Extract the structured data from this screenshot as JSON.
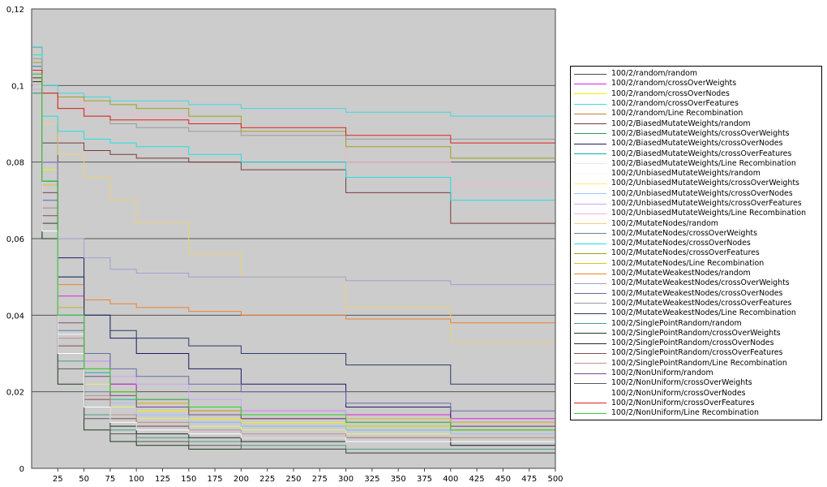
{
  "chart_data": {
    "type": "line",
    "title": "",
    "xlabel": "",
    "ylabel": "",
    "xlim": [
      0,
      500
    ],
    "ylim": [
      0,
      0.12
    ],
    "x_ticks": [
      25,
      50,
      75,
      100,
      125,
      150,
      175,
      200,
      225,
      250,
      275,
      300,
      325,
      350,
      375,
      400,
      425,
      450,
      475,
      500
    ],
    "x_tick_labels": [
      "25",
      "50",
      "75",
      "100",
      "125",
      "150",
      "175",
      "200",
      "225",
      "250",
      "275",
      "300",
      "325",
      "350",
      "375",
      "400",
      "425",
      "450",
      "475",
      "500"
    ],
    "y_ticks": [
      0,
      0.02,
      0.04,
      0.06,
      0.08,
      0.1,
      0.12
    ],
    "y_tick_labels": [
      "0",
      "0,02",
      "0,04",
      "0,06",
      "0,08",
      "0,1",
      "0,12"
    ],
    "grid": "horizontal",
    "legend_position": "right",
    "plot_background": "#cccccc",
    "x": [
      1,
      10,
      25,
      50,
      75,
      100,
      150,
      200,
      300,
      400,
      500
    ],
    "series": [
      {
        "name": "100/2/random/random",
        "color": "#4a4a4a",
        "values": [
          0.11,
          0.085,
          0.05,
          0.03,
          0.022,
          0.018,
          0.015,
          0.013,
          0.011,
          0.01,
          0.01
        ]
      },
      {
        "name": "100/2/random/crossOverWeights",
        "color": "#e020e0",
        "values": [
          0.105,
          0.08,
          0.045,
          0.028,
          0.022,
          0.018,
          0.016,
          0.015,
          0.014,
          0.013,
          0.013
        ]
      },
      {
        "name": "100/2/random/crossOverNodes",
        "color": "#f0f000",
        "values": [
          0.108,
          0.078,
          0.04,
          0.024,
          0.018,
          0.015,
          0.013,
          0.012,
          0.011,
          0.01,
          0.01
        ]
      },
      {
        "name": "100/2/random/crossOverFeatures",
        "color": "#40d8e0",
        "values": [
          0.11,
          0.1,
          0.098,
          0.097,
          0.096,
          0.096,
          0.095,
          0.094,
          0.093,
          0.092,
          0.09
        ]
      },
      {
        "name": "100/2/random/Line Recombination",
        "color": "#c0803a",
        "values": [
          0.1,
          0.072,
          0.04,
          0.026,
          0.02,
          0.017,
          0.014,
          0.013,
          0.012,
          0.011,
          0.011
        ]
      },
      {
        "name": "100/2/BiasedMutateWeights/random",
        "color": "#7a3a3a",
        "values": [
          0.102,
          0.09,
          0.085,
          0.083,
          0.082,
          0.081,
          0.08,
          0.078,
          0.072,
          0.064,
          0.061
        ]
      },
      {
        "name": "100/2/BiasedMutateWeights/crossOverWeights",
        "color": "#2a9a6a",
        "values": [
          0.098,
          0.07,
          0.038,
          0.022,
          0.016,
          0.013,
          0.011,
          0.01,
          0.009,
          0.008,
          0.008
        ]
      },
      {
        "name": "100/2/BiasedMutateWeights/crossOverNodes",
        "color": "#1a1a6a",
        "values": [
          0.1,
          0.08,
          0.055,
          0.04,
          0.034,
          0.03,
          0.026,
          0.022,
          0.016,
          0.012,
          0.01
        ]
      },
      {
        "name": "100/2/BiasedMutateWeights/crossOverFeatures",
        "color": "#10b0b0",
        "values": [
          0.105,
          0.075,
          0.042,
          0.025,
          0.018,
          0.014,
          0.012,
          0.011,
          0.01,
          0.009,
          0.009
        ]
      },
      {
        "name": "100/2/BiasedMutateWeights/Line Recombination",
        "color": "#e8e8f0",
        "values": [
          0.104,
          0.07,
          0.038,
          0.022,
          0.016,
          0.013,
          0.011,
          0.01,
          0.009,
          0.009,
          0.009
        ]
      },
      {
        "name": "100/2/UnbiasedMutateWeights/random",
        "color": "#f8f8f8",
        "values": [
          0.1,
          0.068,
          0.035,
          0.02,
          0.014,
          0.011,
          0.009,
          0.008,
          0.007,
          0.007,
          0.007
        ]
      },
      {
        "name": "100/2/UnbiasedMutateWeights/crossOverWeights",
        "color": "#f0f080",
        "values": [
          0.101,
          0.072,
          0.038,
          0.022,
          0.016,
          0.013,
          0.011,
          0.01,
          0.009,
          0.008,
          0.008
        ]
      },
      {
        "name": "100/2/UnbiasedMutateWeights/crossOverNodes",
        "color": "#a0c0ff",
        "values": [
          0.103,
          0.074,
          0.04,
          0.024,
          0.017,
          0.014,
          0.012,
          0.011,
          0.01,
          0.009,
          0.009
        ]
      },
      {
        "name": "100/2/UnbiasedMutateWeights/crossOverFeatures",
        "color": "#d0a0ff",
        "values": [
          0.099,
          0.07,
          0.036,
          0.028,
          0.024,
          0.022,
          0.018,
          0.015,
          0.013,
          0.012,
          0.012
        ]
      },
      {
        "name": "100/2/UnbiasedMutateWeights/Line Recombination",
        "color": "#ffb0d0",
        "values": [
          0.106,
          0.098,
          0.096,
          0.094,
          0.093,
          0.092,
          0.09,
          0.087,
          0.08,
          0.074,
          0.07
        ]
      },
      {
        "name": "100/2/MutateNodes/random",
        "color": "#f0d070",
        "values": [
          0.104,
          0.09,
          0.082,
          0.076,
          0.07,
          0.064,
          0.056,
          0.05,
          0.042,
          0.033,
          0.03
        ]
      },
      {
        "name": "100/2/MutateNodes/crossOverWeights",
        "color": "#5a8a9a",
        "values": [
          0.1,
          0.068,
          0.036,
          0.02,
          0.014,
          0.011,
          0.009,
          0.008,
          0.007,
          0.006,
          0.006
        ]
      },
      {
        "name": "100/2/MutateNodes/crossOverNodes",
        "color": "#20e0e0",
        "values": [
          0.108,
          0.092,
          0.088,
          0.086,
          0.085,
          0.084,
          0.082,
          0.08,
          0.076,
          0.07,
          0.067
        ]
      },
      {
        "name": "100/2/MutateNodes/crossOverFeatures",
        "color": "#a0a020",
        "values": [
          0.106,
          0.098,
          0.097,
          0.096,
          0.095,
          0.094,
          0.092,
          0.088,
          0.084,
          0.081,
          0.079
        ]
      },
      {
        "name": "100/2/MutateNodes/Line Recombination",
        "color": "#e0c020",
        "values": [
          0.102,
          0.074,
          0.042,
          0.026,
          0.02,
          0.017,
          0.015,
          0.014,
          0.013,
          0.012,
          0.012
        ]
      },
      {
        "name": "100/2/MutateWeakestNodes/random",
        "color": "#f08030",
        "values": [
          0.1,
          0.072,
          0.048,
          0.044,
          0.043,
          0.042,
          0.041,
          0.04,
          0.039,
          0.038,
          0.038
        ]
      },
      {
        "name": "100/2/MutateWeakestNodes/crossOverWeights",
        "color": "#a0a0d0",
        "values": [
          0.104,
          0.08,
          0.06,
          0.055,
          0.052,
          0.051,
          0.05,
          0.05,
          0.049,
          0.048,
          0.048
        ]
      },
      {
        "name": "100/2/MutateWeakestNodes/crossOverNodes",
        "color": "#6a6aaa",
        "values": [
          0.1,
          0.07,
          0.04,
          0.03,
          0.026,
          0.024,
          0.022,
          0.02,
          0.017,
          0.015,
          0.015
        ]
      },
      {
        "name": "100/2/MutateWeakestNodes/crossOverFeatures",
        "color": "#9a9a9a",
        "values": [
          0.107,
          0.098,
          0.094,
          0.092,
          0.09,
          0.089,
          0.088,
          0.087,
          0.086,
          0.086,
          0.085
        ]
      },
      {
        "name": "100/2/MutateWeakestNodes/Line Recombination",
        "color": "#2a3a6a",
        "values": [
          0.1,
          0.075,
          0.05,
          0.04,
          0.036,
          0.034,
          0.032,
          0.03,
          0.027,
          0.022,
          0.02
        ]
      },
      {
        "name": "100/2/SinglePointRandom/random",
        "color": "#4aa080",
        "values": [
          0.098,
          0.06,
          0.028,
          0.014,
          0.01,
          0.008,
          0.007,
          0.006,
          0.005,
          0.005,
          0.005
        ]
      },
      {
        "name": "100/2/SinglePointRandom/crossOverWeights",
        "color": "#1a3a1a",
        "values": [
          0.1,
          0.06,
          0.022,
          0.01,
          0.007,
          0.006,
          0.005,
          0.005,
          0.004,
          0.004,
          0.004
        ]
      },
      {
        "name": "100/2/SinglePointRandom/crossOverNodes",
        "color": "#2a2a2a",
        "values": [
          0.101,
          0.064,
          0.03,
          0.016,
          0.011,
          0.009,
          0.008,
          0.007,
          0.007,
          0.006,
          0.006
        ]
      },
      {
        "name": "100/2/SinglePointRandom/crossOverFeatures",
        "color": "#8a4a4a",
        "values": [
          0.102,
          0.066,
          0.032,
          0.018,
          0.013,
          0.011,
          0.009,
          0.008,
          0.008,
          0.007,
          0.007
        ]
      },
      {
        "name": "100/2/SinglePointRandom/Line Recombination",
        "color": "#c09090",
        "values": [
          0.103,
          0.068,
          0.034,
          0.019,
          0.014,
          0.012,
          0.01,
          0.009,
          0.008,
          0.008,
          0.008
        ]
      },
      {
        "name": "100/2/NonUniform/random",
        "color": "#7a4a8a",
        "values": [
          0.104,
          0.072,
          0.038,
          0.024,
          0.019,
          0.016,
          0.014,
          0.013,
          0.012,
          0.011,
          0.011
        ]
      },
      {
        "name": "100/2/NonUniform/crossOverWeights",
        "color": "#5a5a5a",
        "values": [
          0.102,
          0.064,
          0.026,
          0.013,
          0.009,
          0.007,
          0.006,
          0.005,
          0.004,
          0.004,
          0.004
        ]
      },
      {
        "name": "100/2/NonUniform/crossOverNodes",
        "color": "#ffffff",
        "values": [
          0.1,
          0.062,
          0.03,
          0.016,
          0.012,
          0.01,
          0.009,
          0.008,
          0.007,
          0.007,
          0.007
        ]
      },
      {
        "name": "100/2/NonUniform/crossOverFeatures",
        "color": "#e02020",
        "values": [
          0.104,
          0.098,
          0.094,
          0.092,
          0.091,
          0.091,
          0.09,
          0.089,
          0.087,
          0.085,
          0.084
        ]
      },
      {
        "name": "100/2/NonUniform/Line Recombination",
        "color": "#30d030",
        "values": [
          0.103,
          0.075,
          0.04,
          0.026,
          0.02,
          0.018,
          0.016,
          0.014,
          0.012,
          0.01,
          0.01
        ]
      }
    ]
  }
}
